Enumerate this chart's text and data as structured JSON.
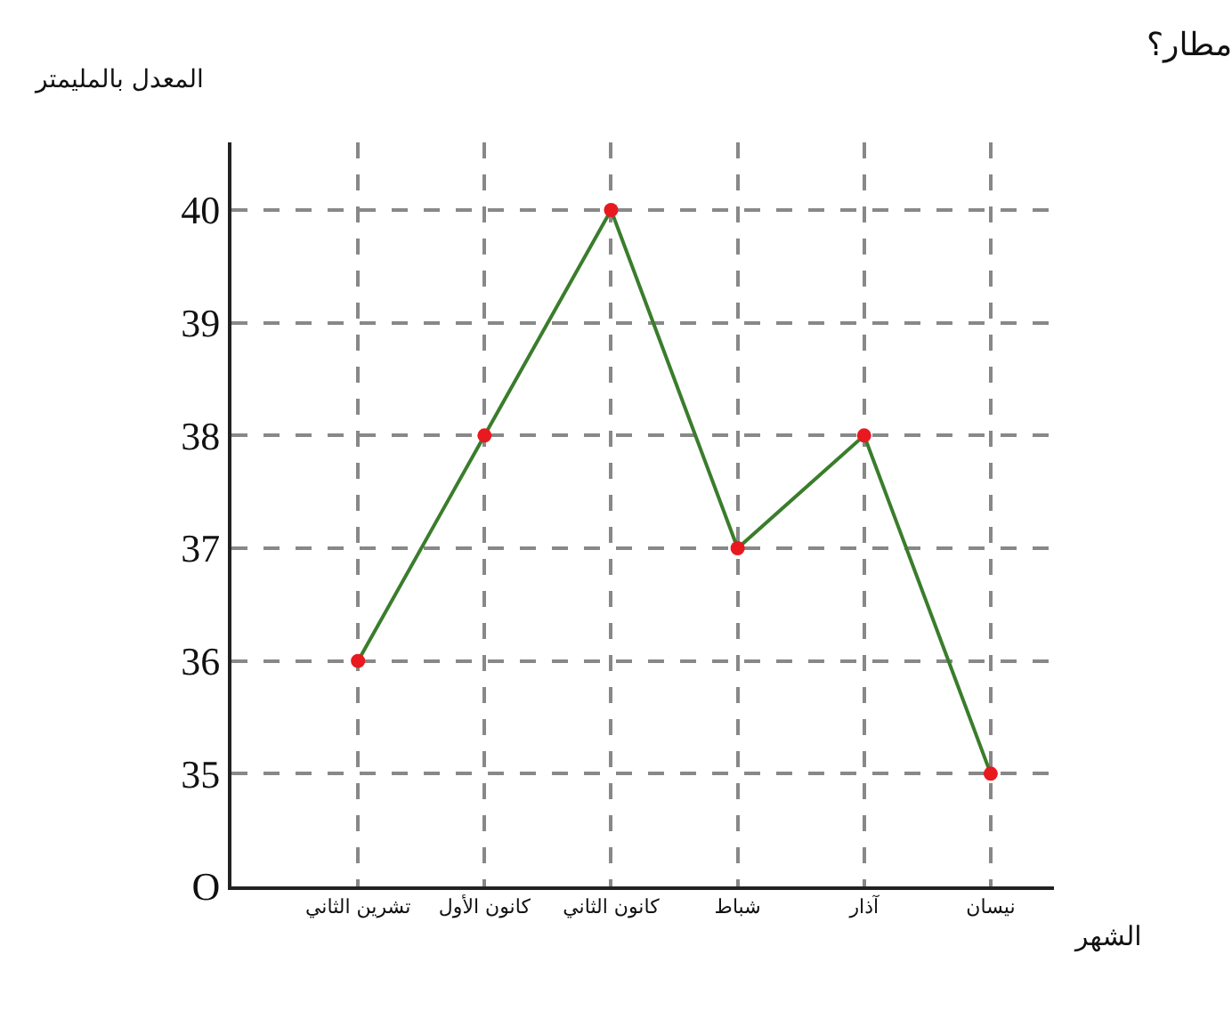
{
  "chart_data": {
    "type": "line",
    "xlabel": "الشهر",
    "ylabel": "المعدل بالمليمتر",
    "categories": [
      "تشرين الثاني",
      "كانون الأول",
      "كانون الثاني",
      "شباط",
      "آذار",
      "نيسان"
    ],
    "series": [
      {
        "color": "#3a7d2c",
        "values": [
          36,
          38,
          40,
          37,
          38,
          35
        ]
      }
    ],
    "ylim": [
      34,
      40.6
    ],
    "yticks": [
      {
        "value": 34,
        "label": "O"
      },
      35,
      36,
      37,
      38,
      39,
      40
    ],
    "grid": true,
    "marker": "circle",
    "line_style": "solid",
    "legend": false,
    "annotations": [
      "مطار؟"
    ]
  }
}
